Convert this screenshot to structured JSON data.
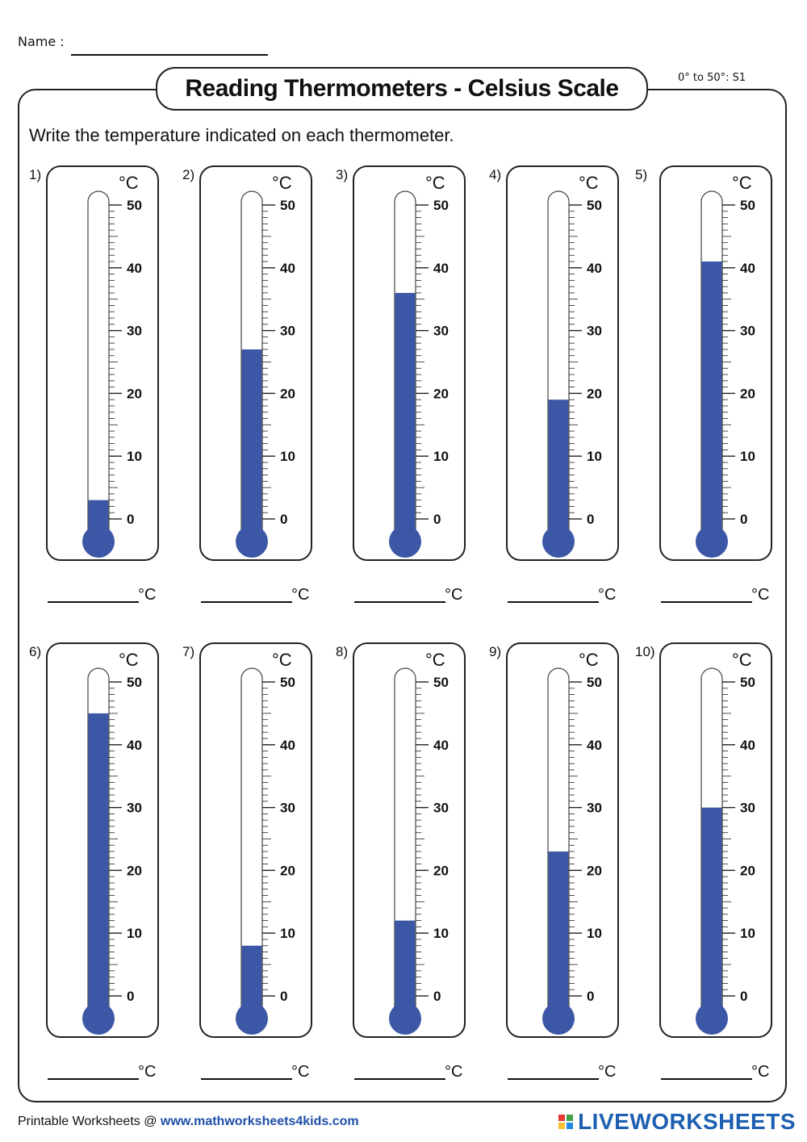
{
  "header": {
    "name_label": "Name :",
    "title": "Reading Thermometers - Celsius Scale",
    "set_label": "0° to 50°: S1",
    "instructions": "Write the temperature indicated on each thermometer."
  },
  "thermometer": {
    "unit_label": "°C",
    "scale_labels": [
      "50",
      "40",
      "30",
      "20",
      "10",
      "0"
    ],
    "fill_color": "#3b57a6",
    "answer_unit": "°C"
  },
  "items": [
    {
      "number": "1)",
      "value": 3
    },
    {
      "number": "2)",
      "value": 27
    },
    {
      "number": "3)",
      "value": 36
    },
    {
      "number": "4)",
      "value": 19
    },
    {
      "number": "5)",
      "value": 41
    },
    {
      "number": "6)",
      "value": 45
    },
    {
      "number": "7)",
      "value": 8
    },
    {
      "number": "8)",
      "value": 12
    },
    {
      "number": "9)",
      "value": 23
    },
    {
      "number": "10)",
      "value": 30
    }
  ],
  "footer": {
    "left_text": "Printable Worksheets @ ",
    "url": "www.mathworksheets4kids.com",
    "brand": "LIVEWORKSHEETS",
    "brand_colors": [
      "#e53935",
      "#43a047",
      "#fbc02d",
      "#1e88e5"
    ]
  }
}
